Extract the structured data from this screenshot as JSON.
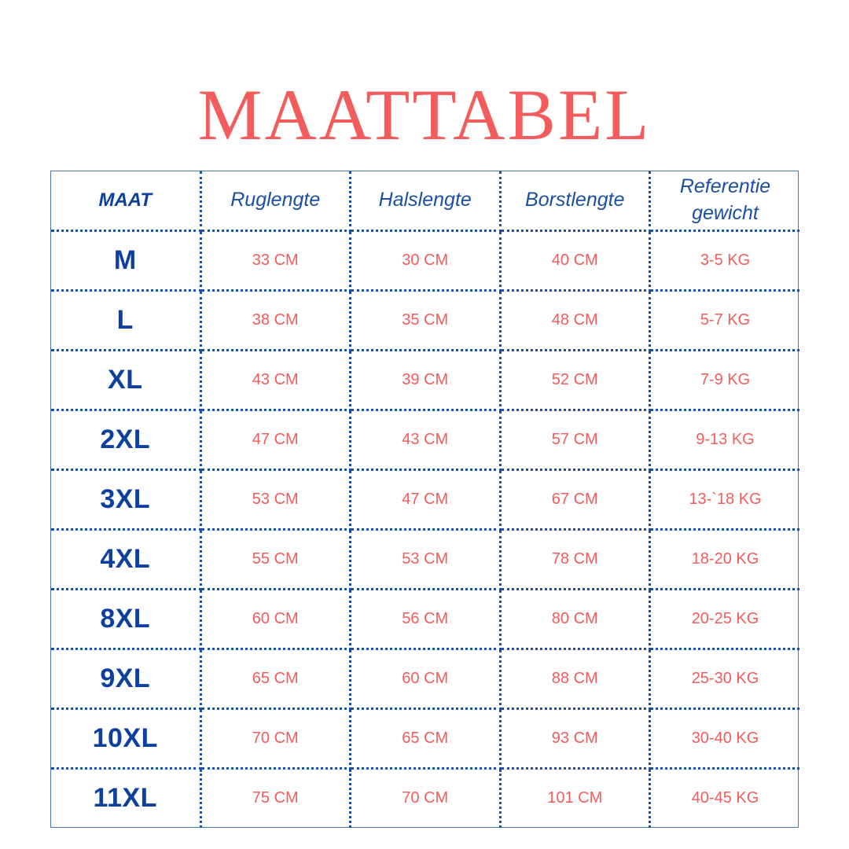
{
  "title": "MAATTABEL",
  "headers": {
    "size": "MAAT",
    "back": "Ruglengte",
    "neck": "Halslengte",
    "chest": "Borstlengte",
    "weight_line1": "Referentie",
    "weight_line2": "gewicht"
  },
  "rows": [
    {
      "size": "M",
      "back": "33 CM",
      "neck": "30 CM",
      "chest": "40 CM",
      "weight": "3-5 KG"
    },
    {
      "size": "L",
      "back": "38 CM",
      "neck": "35 CM",
      "chest": "48 CM",
      "weight": "5-7 KG"
    },
    {
      "size": "XL",
      "back": "43 CM",
      "neck": "39 CM",
      "chest": "52 CM",
      "weight": "7-9 KG"
    },
    {
      "size": "2XL",
      "back": "47 CM",
      "neck": "43 CM",
      "chest": "57 CM",
      "weight": "9-13 KG"
    },
    {
      "size": "3XL",
      "back": "53 CM",
      "neck": "47 CM",
      "chest": "67 CM",
      "weight": "13-`18 KG"
    },
    {
      "size": "4XL",
      "back": "55 CM",
      "neck": "53 CM",
      "chest": "78 CM",
      "weight": "18-20 KG"
    },
    {
      "size": "8XL",
      "back": "60 CM",
      "neck": "56 CM",
      "chest": "80 CM",
      "weight": "20-25 KG"
    },
    {
      "size": "9XL",
      "back": "65 CM",
      "neck": "60 CM",
      "chest": "88 CM",
      "weight": "25-30 KG"
    },
    {
      "size": "10XL",
      "back": "70 CM",
      "neck": "65 CM",
      "chest": "93 CM",
      "weight": "30-40 KG"
    },
    {
      "size": "11XL",
      "back": "75 CM",
      "neck": "70 CM",
      "chest": "101 CM",
      "weight": "40-45 KG"
    }
  ],
  "colors": {
    "accent_red": "#f25c5c",
    "brand_blue": "#0d3f9e",
    "border_blue": "#1b4fa3"
  }
}
